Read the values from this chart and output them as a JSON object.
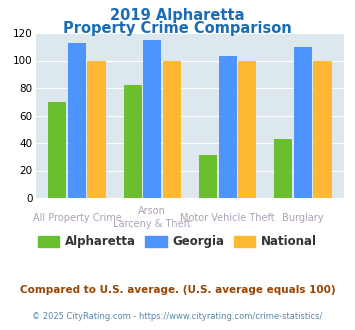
{
  "title_line1": "2019 Alpharetta",
  "title_line2": "Property Crime Comparison",
  "cat_labels_row1": [
    "All Property Crime",
    "Arson",
    "Motor Vehicle Theft",
    "Burglary"
  ],
  "cat_labels_row2": [
    "",
    "Larceny & Theft",
    "",
    ""
  ],
  "alpharetta": [
    70,
    82,
    31,
    43
  ],
  "georgia": [
    113,
    115,
    103,
    110
  ],
  "national": [
    100,
    100,
    100,
    100
  ],
  "colors": {
    "alpharetta": "#6abf2e",
    "georgia": "#4d94ff",
    "national": "#ffb833"
  },
  "ylim": [
    0,
    120
  ],
  "yticks": [
    0,
    20,
    40,
    60,
    80,
    100,
    120
  ],
  "background_color": "#dce8ee",
  "title_color": "#1a6db5",
  "xlabel_color": "#b0a0b8",
  "footnote1": "Compared to U.S. average. (U.S. average equals 100)",
  "footnote2": "© 2025 CityRating.com - https://www.cityrating.com/crime-statistics/",
  "footnote1_color": "#994400",
  "footnote2_color": "#5588aa",
  "legend_labels": [
    "Alpharetta",
    "Georgia",
    "National"
  ]
}
